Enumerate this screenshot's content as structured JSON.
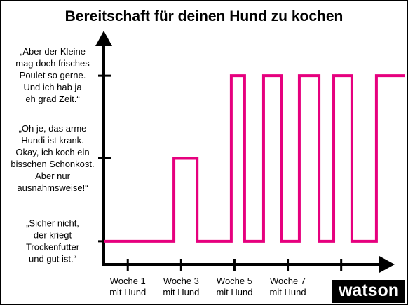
{
  "chart_data": {
    "type": "step-line",
    "title": "Bereitschaft für deinen Hund zu kochen",
    "x": [
      0.1,
      2.73,
      2.73,
      3.6,
      3.6,
      4.88,
      4.88,
      5.38,
      5.38,
      6.09,
      6.09,
      6.75,
      6.75,
      7.43,
      7.43,
      8.17,
      8.17,
      8.72,
      8.72,
      9.4,
      9.4,
      10.32,
      10.32,
      11.4
    ],
    "values": [
      1,
      1,
      2,
      2,
      1,
      1,
      3,
      3,
      1,
      1,
      3,
      3,
      1,
      1,
      3,
      3,
      1,
      1,
      3,
      3,
      1,
      1,
      3,
      3
    ],
    "color": "#e6007e",
    "xlim": [
      0.1,
      11.4
    ],
    "xticks": [
      {
        "value": 1,
        "label": "Woche 1\nmit Hund"
      },
      {
        "value": 3,
        "label": "Woche 3\nmit Hund"
      },
      {
        "value": 5,
        "label": "Woche 5\nmit Hund"
      },
      {
        "value": 7,
        "label": "Woche 7\nmit Hund"
      },
      {
        "value": 9,
        "label": null
      }
    ],
    "ylim": [
      0.72,
      3.5
    ],
    "yticks": [
      {
        "value": 1,
        "label": "„Sicher nicht,\nder kriegt\nTrockenfutter\nund gut ist.“"
      },
      {
        "value": 2,
        "label": "„Oh je, das arme\nHundi ist krank.\nOkay, ich koch ein\nbisschen Schonkost.\nAber nur\nausnahmsweise!“"
      },
      {
        "value": 3,
        "label": "„Aber der Kleine\nmag doch frisches\nPoulet so gerne.\nUnd ich hab ja\neh grad Zeit.“"
      }
    ]
  },
  "logo": "watson"
}
